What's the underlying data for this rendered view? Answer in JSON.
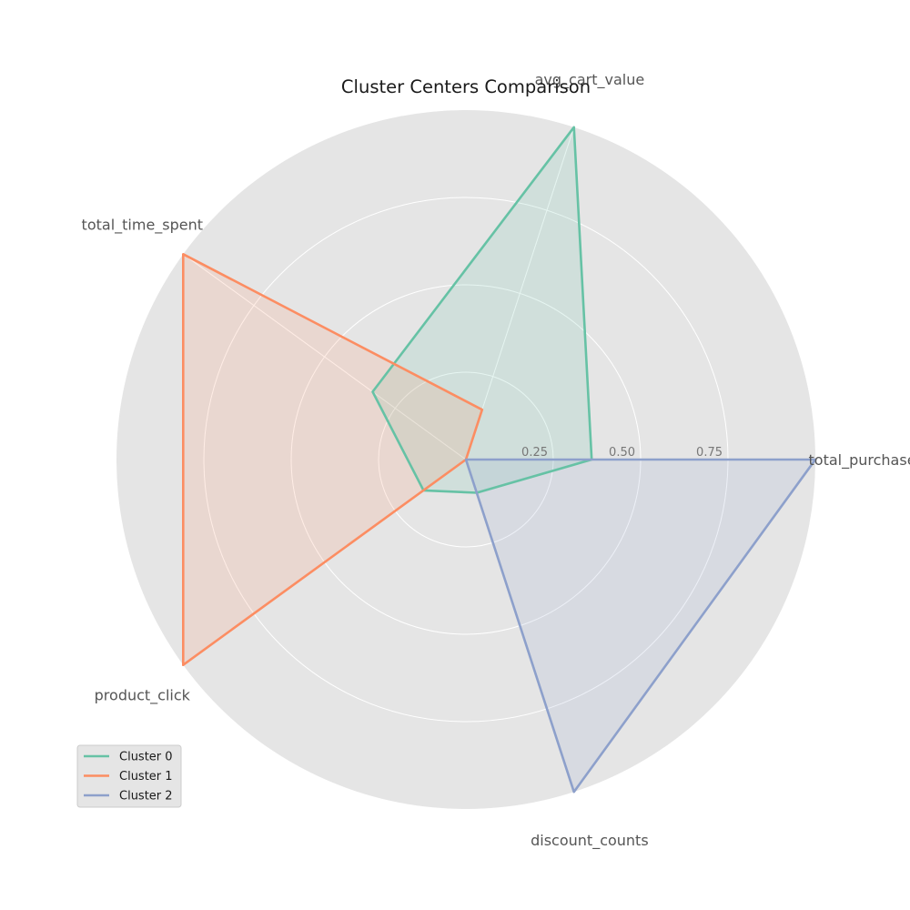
{
  "chart_data": {
    "type": "radar",
    "title": "Cluster Centers Comparison",
    "axes": [
      "total_purchases",
      "avg_cart_value",
      "total_time_spent",
      "product_click",
      "discount_counts"
    ],
    "rlim": [
      0,
      1
    ],
    "rticks": [
      0.25,
      0.5,
      0.75
    ],
    "rtick_labels": [
      "0.25",
      "0.50",
      "0.75"
    ],
    "grid": true,
    "legend_position": "lower-left",
    "series": [
      {
        "name": "Cluster 0",
        "color": "#66c2a5",
        "values": [
          0.36,
          1.0,
          0.33,
          0.15,
          0.1
        ]
      },
      {
        "name": "Cluster 1",
        "color": "#fc8d62",
        "values": [
          0.0,
          0.15,
          1.0,
          1.0,
          0.0
        ]
      },
      {
        "name": "Cluster 2",
        "color": "#8da0cb",
        "values": [
          1.0,
          0.0,
          0.0,
          0.0,
          1.0
        ]
      }
    ]
  }
}
